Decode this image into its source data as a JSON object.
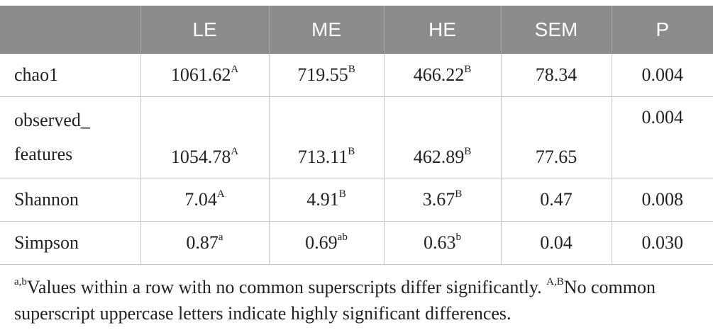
{
  "table": {
    "headers": [
      "",
      "LE",
      "ME",
      "HE",
      "SEM",
      "P"
    ],
    "rows": [
      {
        "label_lines": [
          "chao1"
        ],
        "cells": [
          {
            "value": "1061.62",
            "sup": "A"
          },
          {
            "value": "719.55",
            "sup": "B"
          },
          {
            "value": "466.22",
            "sup": "B"
          },
          {
            "value": "78.34",
            "sup": ""
          },
          {
            "value": "0.004",
            "sup": ""
          }
        ]
      },
      {
        "label_lines": [
          "observed_",
          "features"
        ],
        "cells": [
          {
            "value": "1054.78",
            "sup": "A"
          },
          {
            "value": "713.11",
            "sup": "B"
          },
          {
            "value": "462.89",
            "sup": "B"
          },
          {
            "value": "77.65",
            "sup": ""
          },
          {
            "value": "0.004",
            "sup": ""
          }
        ]
      },
      {
        "label_lines": [
          "Shannon"
        ],
        "cells": [
          {
            "value": "7.04",
            "sup": "A"
          },
          {
            "value": "4.91",
            "sup": "B"
          },
          {
            "value": "3.67",
            "sup": "B"
          },
          {
            "value": "0.47",
            "sup": ""
          },
          {
            "value": "0.008",
            "sup": ""
          }
        ]
      },
      {
        "label_lines": [
          "Simpson"
        ],
        "cells": [
          {
            "value": "0.87",
            "sup": "a"
          },
          {
            "value": "0.69",
            "sup": "ab"
          },
          {
            "value": "0.63",
            "sup": "b"
          },
          {
            "value": "0.04",
            "sup": ""
          },
          {
            "value": "0.030",
            "sup": ""
          }
        ]
      }
    ]
  },
  "footnote": {
    "sup1": "a,b",
    "text1": "Values within a row with no common superscripts differ significantly. ",
    "sup2": "A,B",
    "text2": "No common superscript uppercase letters indicate highly significant differences."
  }
}
